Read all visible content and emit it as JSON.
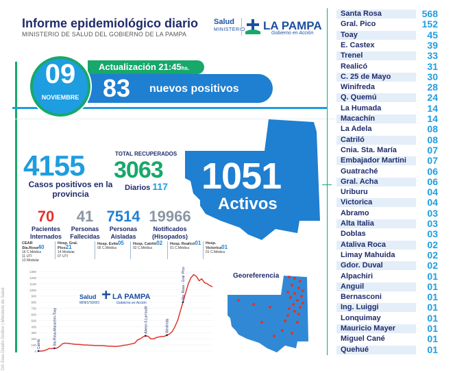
{
  "header": {
    "title": "Informe epidemiológico diario",
    "subtitle": "MINISTERIO DE SALUD DEL GOBIERNO DE LA PAMPA",
    "logo_salud": "Salud",
    "logo_ministerio": "MINISTERIO",
    "logo_la_pampa": "LA PAMPA",
    "logo_gobierno": "Gobierno en Acción"
  },
  "side_credit": "DG Área Diseño Gráfico | Ministerio de Salud",
  "date": {
    "day": "09",
    "month": "NOVIEMBRE"
  },
  "update": {
    "label": "Actualización 21:45",
    "suffix": "hs."
  },
  "new_positives": {
    "value": "83",
    "label": "nuevos positivos"
  },
  "cases": {
    "value": "4155",
    "label": "Casos positivos en la provincia"
  },
  "recovered": {
    "label": "TOTAL RECUPERADOS",
    "value": "3063",
    "daily_label": "Diarios",
    "daily_value": "117"
  },
  "active": {
    "value": "1051",
    "label": "Activos"
  },
  "stats": [
    {
      "value": "70",
      "label": "Pacientes Internados",
      "color": "#e0342a"
    },
    {
      "value": "41",
      "label": "Personas Fallecidas",
      "color": "#8a96a3"
    },
    {
      "value": "7514",
      "label": "Personas Aisladas",
      "color": "#1f7fd1"
    },
    {
      "value": "19966",
      "label": "Notificados (Hisopados)",
      "color": "#8a96a3"
    }
  ],
  "hospitals": [
    {
      "name": "CEAR Sta.Rosa",
      "value": "40",
      "lines": [
        "16 C.Médica",
        "11 UTI",
        "13 Modular"
      ]
    },
    {
      "name": "Hosp. Gral. Pico",
      "value": "21",
      "lines": [
        "14 Modular",
        "07 UTI"
      ]
    },
    {
      "name": "Hosp. Evita",
      "value": "05",
      "lines": [
        "05 C.Médica"
      ]
    },
    {
      "name": "Hosp. Catriló",
      "value": "02",
      "lines": [
        "02 C.Médica"
      ]
    },
    {
      "name": "Hosp. Realicó",
      "value": "01",
      "lines": [
        "01 C.Médica"
      ]
    },
    {
      "name": "Hosp. Victorica",
      "value": "01",
      "lines": [
        "01 C.Médica"
      ]
    }
  ],
  "chart_data": {
    "type": "line",
    "y_ticks": [
      "1300",
      "1200",
      "1100",
      "1000",
      "900",
      "800",
      "700",
      "600",
      "500",
      "400",
      "300",
      "200",
      "100",
      "0"
    ],
    "ylim": [
      0,
      1300
    ],
    "values": [
      0,
      0,
      5,
      20,
      40,
      40,
      45,
      50,
      80,
      120,
      130,
      125,
      120,
      115,
      110,
      110,
      105,
      100,
      100,
      95,
      95,
      90,
      90,
      88,
      88,
      85,
      80,
      80,
      75,
      75,
      80,
      85,
      95,
      100,
      110,
      120,
      130,
      180,
      200,
      230,
      250,
      240,
      200,
      200,
      220,
      230,
      240,
      240,
      260,
      280,
      320,
      400,
      500,
      650,
      800,
      950,
      1100,
      1200,
      1250,
      1220,
      1150,
      1180,
      1120,
      1100,
      1070,
      1051
    ],
    "annotations": [
      "Catriló",
      "Sta.Rosa-Macachín-Toay",
      "Alvear-S.Larroudé",
      "Winifreda",
      "Sta. Rosa - Gral. Pico"
    ]
  },
  "map": {
    "title": "Georeferencia"
  },
  "localities": [
    {
      "name": "Santa Rosa",
      "value": "568"
    },
    {
      "name": "Gral. Pico",
      "value": "152"
    },
    {
      "name": "Toay",
      "value": "45"
    },
    {
      "name": "E. Castex",
      "value": "39"
    },
    {
      "name": "Trenel",
      "value": "33"
    },
    {
      "name": "Realicó",
      "value": "31"
    },
    {
      "name": "C. 25 de Mayo",
      "value": "30"
    },
    {
      "name": "Winifreda",
      "value": "28"
    },
    {
      "name": "Q. Quemú",
      "value": "24"
    },
    {
      "name": "La Humada",
      "value": "14"
    },
    {
      "name": "Macachín",
      "value": "14"
    },
    {
      "name": "La Adela",
      "value": "08"
    },
    {
      "name": "Catriló",
      "value": "08"
    },
    {
      "name": "Cnia. Sta. María",
      "value": "07"
    },
    {
      "name": "Embajador Martini",
      "value": "07"
    },
    {
      "name": "Guatraché",
      "value": "06"
    },
    {
      "name": "Gral. Acha",
      "value": "06"
    },
    {
      "name": "Uriburu",
      "value": "04"
    },
    {
      "name": "Victorica",
      "value": "04"
    },
    {
      "name": "Abramo",
      "value": "03"
    },
    {
      "name": "Alta Italia",
      "value": "03"
    },
    {
      "name": "Doblas",
      "value": "03"
    },
    {
      "name": "Ataliva Roca",
      "value": "02"
    },
    {
      "name": "Limay Mahuida",
      "value": "02"
    },
    {
      "name": "Gdor. Duval",
      "value": "02"
    },
    {
      "name": "Alpachiri",
      "value": "01"
    },
    {
      "name": "Anguil",
      "value": "01"
    },
    {
      "name": "Bernasconi",
      "value": "01"
    },
    {
      "name": "Ing. Luiggi",
      "value": "01"
    },
    {
      "name": "Lonquimay",
      "value": "01"
    },
    {
      "name": "Mauricio Mayer",
      "value": "01"
    },
    {
      "name": "Miguel Cané",
      "value": "01"
    },
    {
      "name": "Quehué",
      "value": "01"
    }
  ]
}
